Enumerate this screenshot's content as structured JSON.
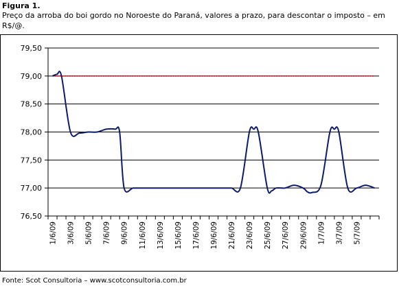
{
  "figure_label": "Figura 1.",
  "caption": "Preço da arroba do boi gordo no Noroeste do Paraná, valores a prazo, para descontar o imposto – em R$/@.",
  "source": "Fonte: Scot Consultoria – www.scotconsultoria.com.br",
  "chart_data": {
    "type": "line",
    "title": "",
    "xlabel": "",
    "ylabel": "",
    "ylim": [
      76.5,
      79.5
    ],
    "y_ticks": [
      "79,50",
      "79,00",
      "78,50",
      "78,00",
      "77,50",
      "77,00",
      "76,50"
    ],
    "y_tick_values": [
      79.5,
      79.0,
      78.5,
      78.0,
      77.5,
      77.0,
      76.5
    ],
    "grid": true,
    "legend": "none",
    "x_tick_labels": [
      "1/6/09",
      "3/6/09",
      "5/6/09",
      "7/6/09",
      "9/6/09",
      "11/6/09",
      "13/6/09",
      "15/6/09",
      "17/6/09",
      "19/6/09",
      "21/6/09",
      "23/6/09",
      "25/6/09",
      "27/6/09",
      "29/6/09",
      "1/7/09",
      "3/7/09",
      "5/7/09"
    ],
    "x_count": 37,
    "reference_line": {
      "value": 79.0,
      "color": "#cc0000"
    },
    "series": [
      {
        "color": "#0a1a6e",
        "x": [
          0,
          0.5,
          1,
          2,
          3,
          4,
          5,
          6,
          7,
          7.5,
          8,
          9,
          10,
          11,
          12,
          13,
          14,
          15,
          16,
          17,
          18,
          19,
          20,
          21,
          22,
          22.5,
          23,
          24,
          24.5,
          25,
          26,
          27,
          28,
          28.5,
          29,
          30,
          31,
          31.5,
          32,
          33,
          34,
          35,
          36
        ],
        "y": [
          79.0,
          79.03,
          79.0,
          78.0,
          77.98,
          78.0,
          78.0,
          78.05,
          78.05,
          78.0,
          77.0,
          77.0,
          77.0,
          77.0,
          77.0,
          77.0,
          77.0,
          77.0,
          77.0,
          77.0,
          77.0,
          77.0,
          77.0,
          77.0,
          78.0,
          78.05,
          78.0,
          77.0,
          76.95,
          77.0,
          77.0,
          77.05,
          77.0,
          76.93,
          76.92,
          77.05,
          78.0,
          78.05,
          78.0,
          77.0,
          77.0,
          77.05,
          77.0
        ]
      }
    ]
  }
}
